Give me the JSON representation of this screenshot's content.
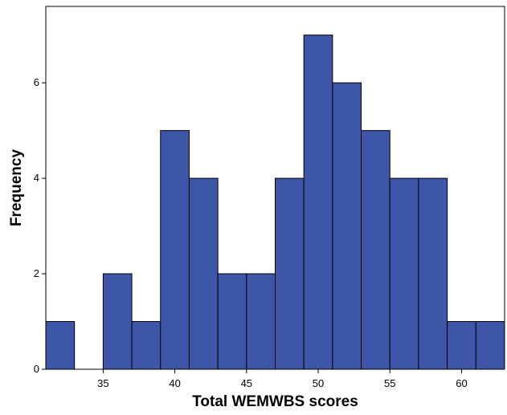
{
  "chart_data": {
    "type": "bar",
    "subtype": "histogram",
    "bin_width": 2,
    "x_range": [
      31,
      63
    ],
    "bins": [
      {
        "start": 31,
        "end": 33,
        "value": 1
      },
      {
        "start": 33,
        "end": 35,
        "value": 0
      },
      {
        "start": 35,
        "end": 37,
        "value": 2
      },
      {
        "start": 37,
        "end": 39,
        "value": 1
      },
      {
        "start": 39,
        "end": 41,
        "value": 5
      },
      {
        "start": 41,
        "end": 43,
        "value": 4
      },
      {
        "start": 43,
        "end": 45,
        "value": 2
      },
      {
        "start": 45,
        "end": 47,
        "value": 2
      },
      {
        "start": 47,
        "end": 49,
        "value": 4
      },
      {
        "start": 49,
        "end": 51,
        "value": 7
      },
      {
        "start": 51,
        "end": 53,
        "value": 6
      },
      {
        "start": 53,
        "end": 55,
        "value": 5
      },
      {
        "start": 55,
        "end": 57,
        "value": 4
      },
      {
        "start": 57,
        "end": 59,
        "value": 4
      },
      {
        "start": 59,
        "end": 61,
        "value": 1
      },
      {
        "start": 61,
        "end": 63,
        "value": 1
      }
    ],
    "xlabel": "Total WEMWBS scores",
    "ylabel": "Frequency",
    "x_ticks": [
      35,
      40,
      45,
      50,
      55,
      60
    ],
    "y_ticks": [
      0,
      2,
      4,
      6
    ],
    "ylim": [
      0,
      7.6
    ],
    "grid": false,
    "bar_color": "#3d56a8",
    "bar_edge_color": "#000000"
  }
}
